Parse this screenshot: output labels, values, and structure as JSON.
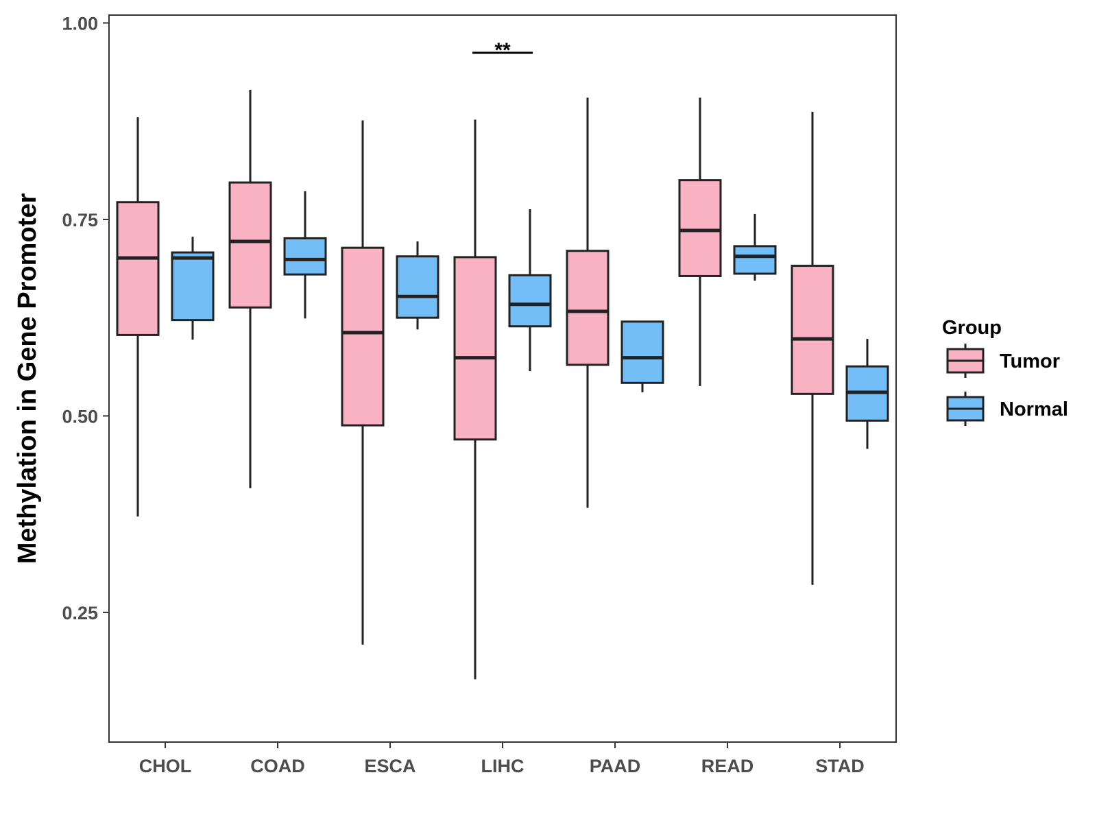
{
  "chart_data": {
    "type": "boxplot",
    "title": "",
    "xlabel": "",
    "ylabel": "Methylation in Gene Promoter",
    "ylim": [
      0.085,
      1.01
    ],
    "yticks": [
      0.25,
      0.5,
      0.75,
      1.0
    ],
    "ytick_labels": [
      "0.25",
      "0.50",
      "0.75",
      "1.00"
    ],
    "categories": [
      "CHOL",
      "COAD",
      "ESCA",
      "LIHC",
      "PAAD",
      "READ",
      "STAD"
    ],
    "grid": false,
    "legend": {
      "title": "Group",
      "position": "right"
    },
    "series": [
      {
        "name": "Tumor",
        "color": "#F8B2C4",
        "boxes": [
          {
            "min": 0.372,
            "q1": 0.603,
            "median": 0.701,
            "q3": 0.772,
            "max": 0.88
          },
          {
            "min": 0.408,
            "q1": 0.638,
            "median": 0.722,
            "q3": 0.797,
            "max": 0.915
          },
          {
            "min": 0.209,
            "q1": 0.488,
            "median": 0.606,
            "q3": 0.714,
            "max": 0.876
          },
          {
            "min": 0.165,
            "q1": 0.47,
            "median": 0.574,
            "q3": 0.702,
            "max": 0.877
          },
          {
            "min": 0.383,
            "q1": 0.565,
            "median": 0.633,
            "q3": 0.71,
            "max": 0.905
          },
          {
            "min": 0.538,
            "q1": 0.678,
            "median": 0.736,
            "q3": 0.8,
            "max": 0.905
          },
          {
            "min": 0.285,
            "q1": 0.528,
            "median": 0.598,
            "q3": 0.691,
            "max": 0.887
          }
        ]
      },
      {
        "name": "Normal",
        "color": "#74BEF8",
        "boxes": [
          {
            "min": 0.597,
            "q1": 0.622,
            "median": 0.701,
            "q3": 0.708,
            "max": 0.728
          },
          {
            "min": 0.624,
            "q1": 0.68,
            "median": 0.699,
            "q3": 0.726,
            "max": 0.786
          },
          {
            "min": 0.61,
            "q1": 0.625,
            "median": 0.652,
            "q3": 0.703,
            "max": 0.722
          },
          {
            "min": 0.557,
            "q1": 0.614,
            "median": 0.642,
            "q3": 0.679,
            "max": 0.763
          },
          {
            "min": 0.53,
            "q1": 0.542,
            "median": 0.574,
            "q3": 0.62,
            "max": 0.62
          },
          {
            "min": 0.672,
            "q1": 0.681,
            "median": 0.703,
            "q3": 0.716,
            "max": 0.757
          },
          {
            "min": 0.458,
            "q1": 0.494,
            "median": 0.53,
            "q3": 0.563,
            "max": 0.598
          }
        ]
      }
    ],
    "annotations": [
      {
        "category": "LIHC",
        "label": "**",
        "y": 0.962
      }
    ]
  }
}
